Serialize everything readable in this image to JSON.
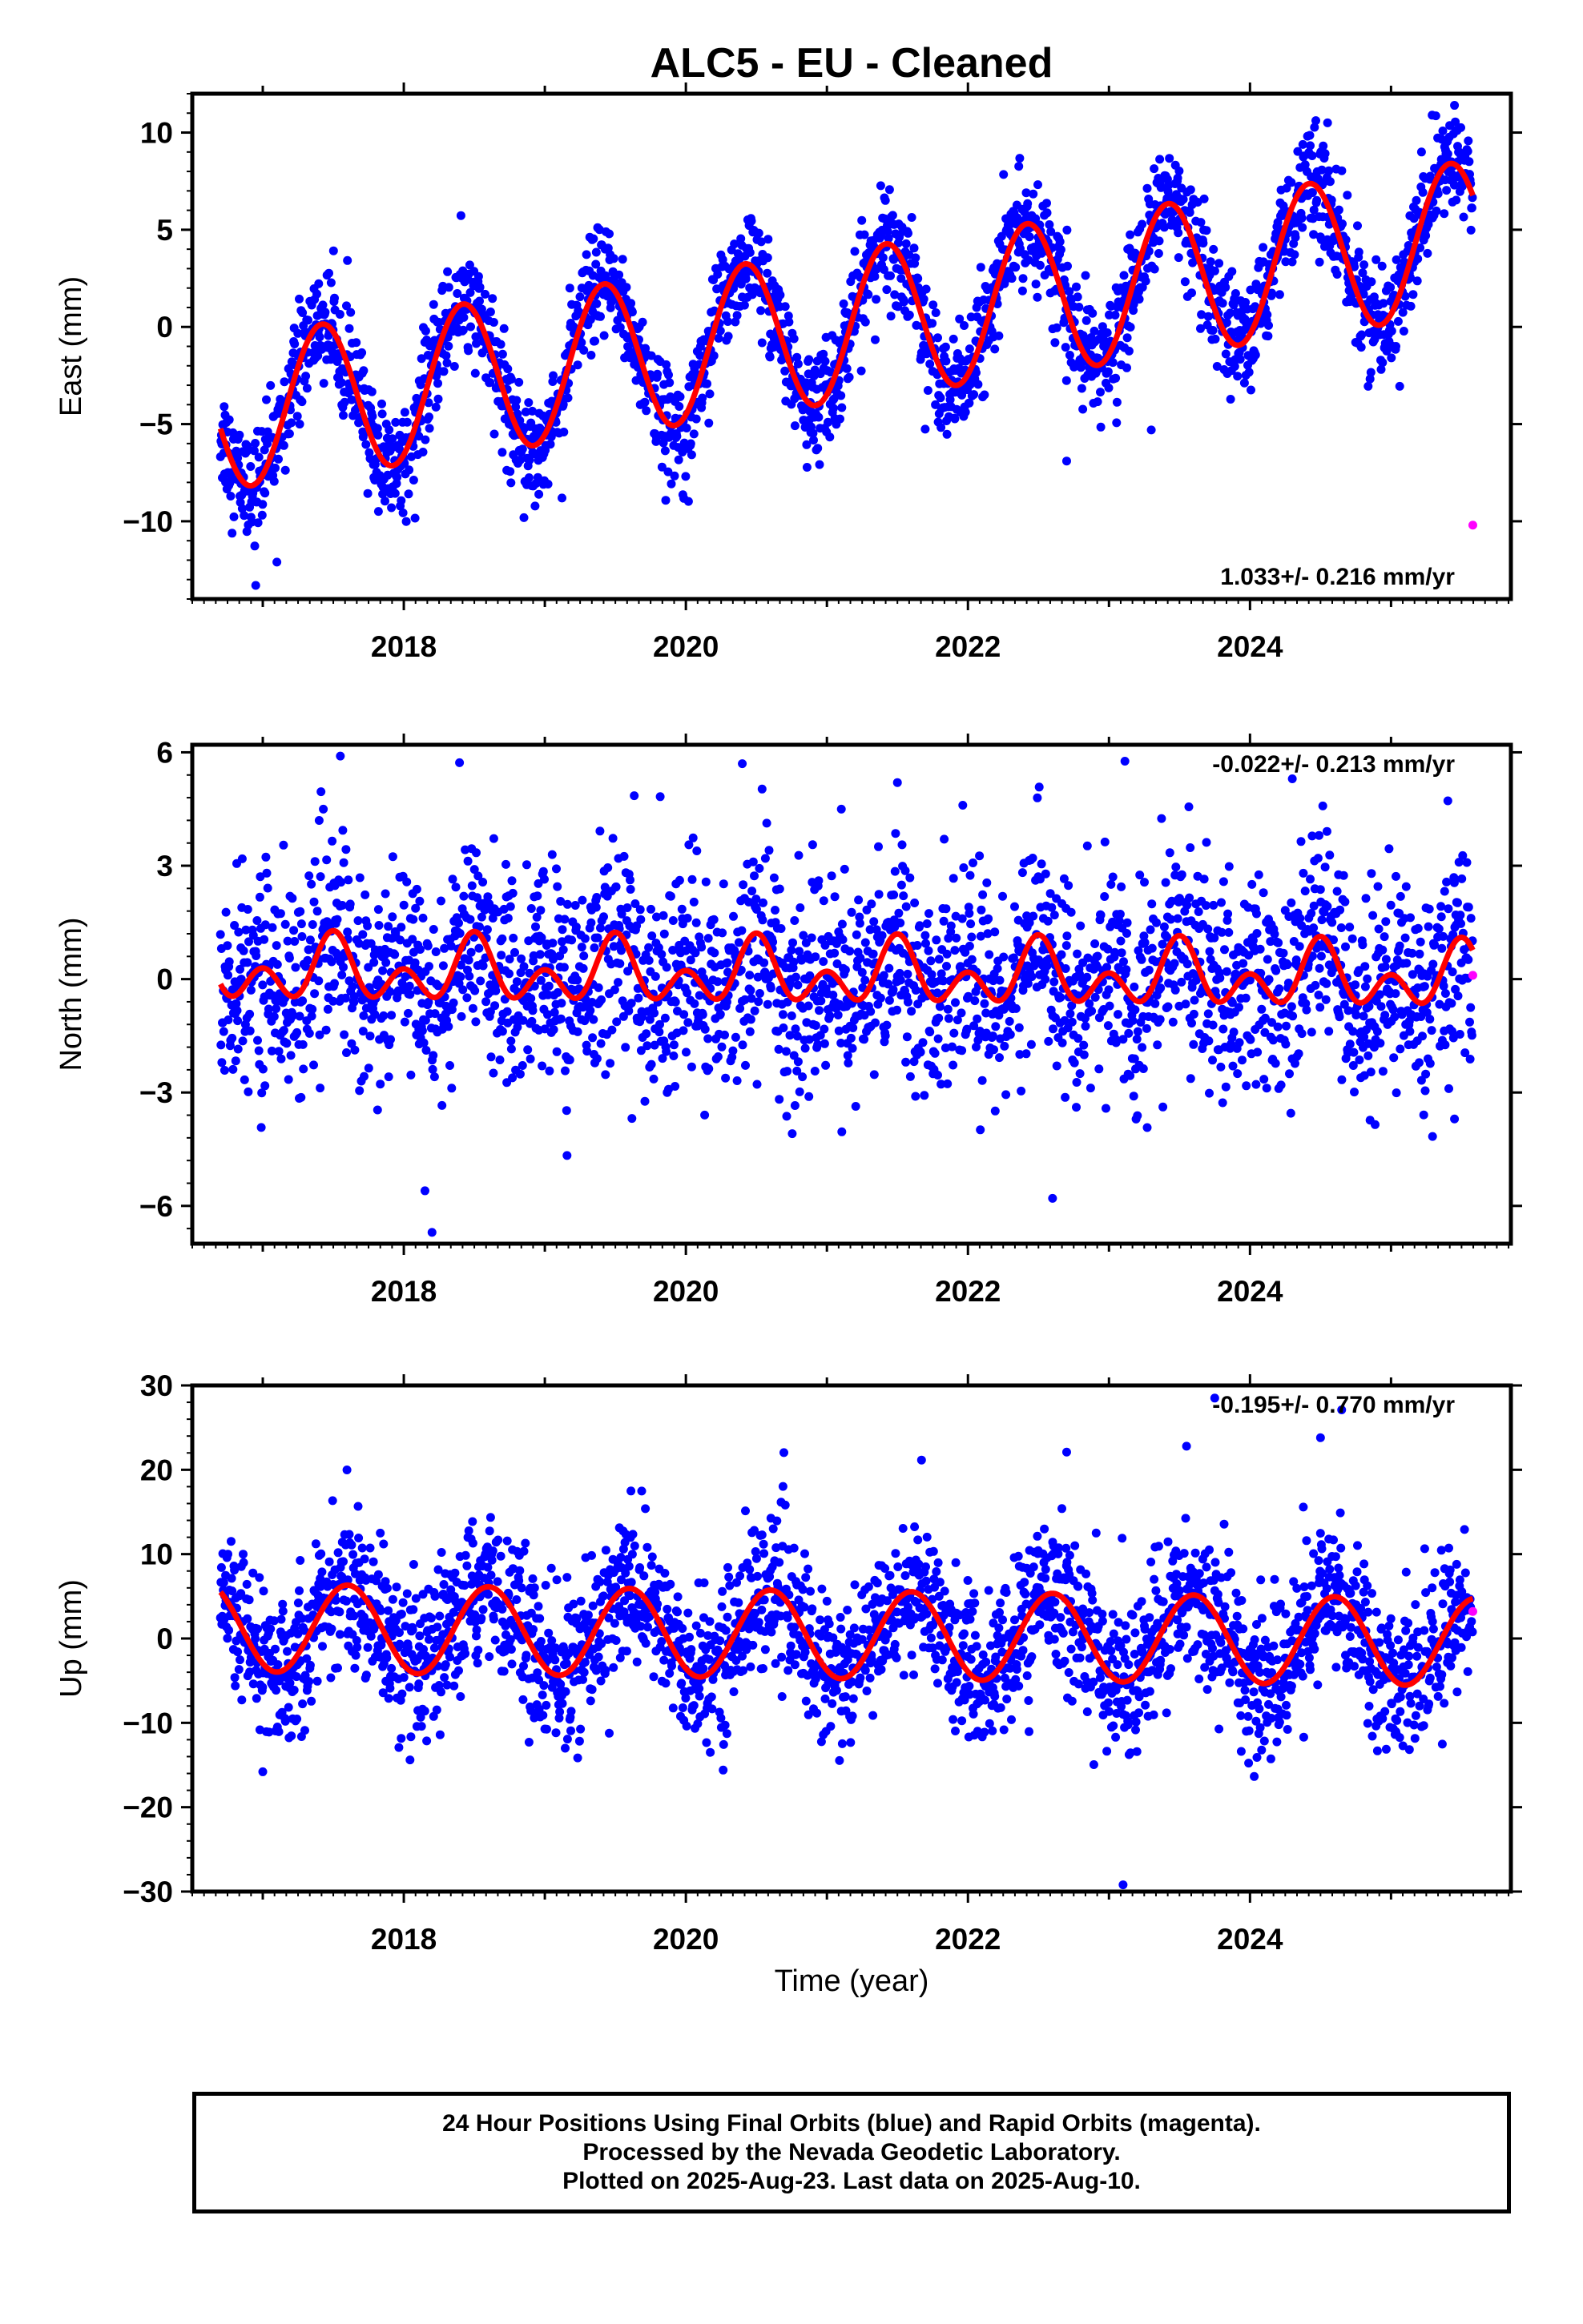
{
  "title": "ALC5  - EU - Cleaned",
  "xlabel": "Time (year)",
  "footer": {
    "line1": "24 Hour Positions Using Final Orbits (blue) and Rapid Orbits (magenta).",
    "line2": "Processed by the Nevada Geodetic Laboratory.",
    "line3": "Plotted on 2025-Aug-23. Last data on 2025-Aug-10."
  },
  "colors": {
    "final_orbits": "#0000ff",
    "rapid_orbits": "#ff00ff",
    "model": "#ff0000",
    "frame": "#000000"
  },
  "chart_data": [
    {
      "type": "scatter",
      "name": "east",
      "ylabel": "East (mm)",
      "rate": "1.033+/- 0.216 mm/yr",
      "rate_position": "bottom-right",
      "xlim": [
        2016.5,
        2025.85
      ],
      "ylim": [
        -14,
        12
      ],
      "xticks": [
        2018,
        2020,
        2022,
        2024
      ],
      "yticks": [
        -10,
        -5,
        0,
        5,
        10
      ],
      "data_range": [
        2016.7,
        2025.58
      ],
      "model": {
        "offset": -4.5,
        "trend": 1.033,
        "annual_amplitude": 3.9,
        "annual_peak": 0.42,
        "semiannual_amplitude": 0.0,
        "semiannual_peak": 0.0,
        "origin": 2016.7
      },
      "scatter_sigma": 1.4,
      "outliers_final": [
        [
          2016.95,
          -13.3
        ],
        [
          2017.1,
          -12.1
        ],
        [
          2022.7,
          -6.9
        ],
        [
          2023.3,
          -5.3
        ],
        [
          2025.45,
          11.4
        ],
        [
          2024.55,
          10.5
        ]
      ],
      "rapid_points": [
        [
          2025.58,
          -10.2
        ]
      ]
    },
    {
      "type": "scatter",
      "name": "north",
      "ylabel": "North (mm)",
      "rate": "-0.022+/- 0.213 mm/yr",
      "rate_position": "top-right",
      "xlim": [
        2016.5,
        2025.85
      ],
      "ylim": [
        -7,
        6.2
      ],
      "xticks": [
        2018,
        2020,
        2022,
        2024
      ],
      "yticks": [
        -6,
        -3,
        0,
        3,
        6
      ],
      "data_range": [
        2016.7,
        2025.58
      ],
      "model": {
        "offset": 0.2,
        "trend": -0.022,
        "annual_amplitude": 0.5,
        "annual_peak": 0.5,
        "semiannual_amplitude": 0.6,
        "semiannual_peak": 0.0,
        "origin": 2016.7
      },
      "scatter_sigma": 1.4,
      "outliers_final": [
        [
          2017.55,
          5.9
        ],
        [
          2018.2,
          -6.7
        ],
        [
          2018.15,
          -5.6
        ],
        [
          2020.4,
          5.7
        ],
        [
          2021.5,
          5.2
        ],
        [
          2022.6,
          -5.8
        ],
        [
          2025.45,
          -3.7
        ],
        [
          2024.3,
          5.3
        ]
      ],
      "rapid_points": [
        [
          2025.58,
          0.1
        ]
      ]
    },
    {
      "type": "scatter",
      "name": "up",
      "ylabel": "Up (mm)",
      "rate": "-0.195+/- 0.770 mm/yr",
      "rate_position": "top-right",
      "xlim": [
        2016.5,
        2025.85
      ],
      "ylim": [
        -30,
        30
      ],
      "xticks": [
        2018,
        2020,
        2022,
        2024
      ],
      "yticks": [
        -30,
        -20,
        -10,
        0,
        10,
        20,
        30
      ],
      "data_range": [
        2016.7,
        2025.58
      ],
      "model": {
        "offset": 1.3,
        "trend": -0.195,
        "annual_amplitude": 5.2,
        "annual_peak": 0.6,
        "semiannual_amplitude": 0.0,
        "semiannual_peak": 0.0,
        "origin": 2016.7
      },
      "scatter_sigma": 4.5,
      "outliers_final": [
        [
          2023.1,
          -29.2
        ],
        [
          2023.75,
          28.5
        ],
        [
          2024.5,
          23.8
        ],
        [
          2024.65,
          27.1
        ],
        [
          2022.7,
          22.1
        ],
        [
          2023.55,
          22.8
        ],
        [
          2017.0,
          -15.8
        ]
      ],
      "rapid_points": [
        [
          2025.58,
          3.2
        ]
      ]
    }
  ]
}
